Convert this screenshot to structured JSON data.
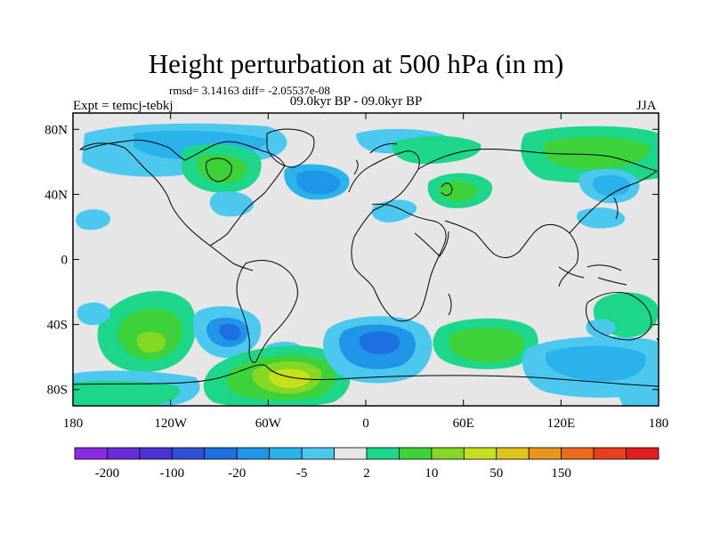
{
  "title": "Height perturbation at 500 hPa (in m)",
  "stats": "rmsd= 3.14163 diff= -2.05537e-08",
  "left_label": "Expt = temcj-tebkj",
  "center_label": "09.0kyr BP - 09.0kyr BP",
  "right_label": "JJA",
  "axes": {
    "x_ticks": [
      {
        "value": -180,
        "label": "180"
      },
      {
        "value": -120,
        "label": "120W"
      },
      {
        "value": -60,
        "label": "60W"
      },
      {
        "value": 0,
        "label": "0"
      },
      {
        "value": 60,
        "label": "60E"
      },
      {
        "value": 120,
        "label": "120E"
      },
      {
        "value": 180,
        "label": "180"
      }
    ],
    "y_ticks": [
      {
        "value": 80,
        "label": "80N"
      },
      {
        "value": 40,
        "label": "40N"
      },
      {
        "value": 0,
        "label": "0"
      },
      {
        "value": -40,
        "label": "40S"
      },
      {
        "value": -80,
        "label": "80S"
      }
    ],
    "lon_range": [
      -180,
      180
    ],
    "lat_range": [
      -90,
      90
    ]
  },
  "colorbar": {
    "labels": [
      "-200",
      "-100",
      "-20",
      "-5",
      "2",
      "10",
      "50",
      "150"
    ],
    "colors": [
      "#8a2be2",
      "#6a2bd8",
      "#4a32d4",
      "#2f4fd8",
      "#1e6fe0",
      "#1e95e6",
      "#29b3ea",
      "#4cc8ee",
      "#e6e6e6",
      "#1ed68a",
      "#3ed23a",
      "#86d624",
      "#c6e01e",
      "#e0c41e",
      "#e8961e",
      "#ea6a1e",
      "#e8401e",
      "#e01e1e"
    ]
  },
  "colors": {
    "neutral": "#e6e6e6",
    "light_blue": "#4cc8ee",
    "mid_blue": "#29b3ea",
    "blue": "#1e95e6",
    "deep_blue": "#1e6fe0",
    "teal": "#1ed68a",
    "green": "#3ed23a",
    "yellow_green": "#86d624",
    "yellow": "#c6e01e"
  }
}
